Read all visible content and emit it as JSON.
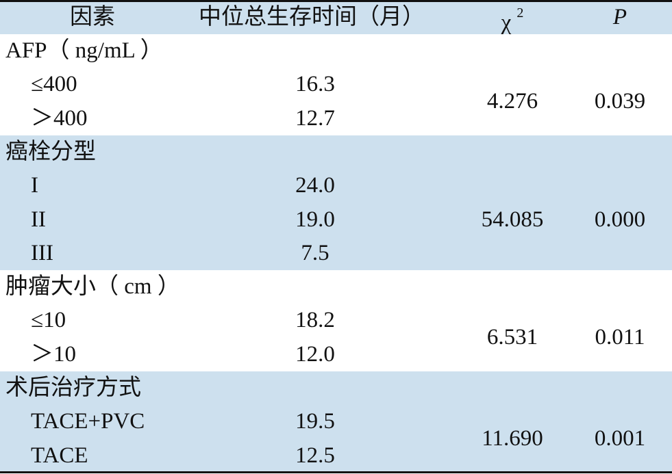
{
  "table": {
    "header": {
      "factor": "因素",
      "median": "中位总生存时间（月）",
      "chi": "χ",
      "chi_sup": "2",
      "p": "P"
    },
    "groups": [
      {
        "title": "AFP（ ng/mL ）",
        "items": [
          {
            "label": "≤400",
            "median": "16.3"
          },
          {
            "label": "＞400",
            "median": "12.7"
          }
        ],
        "chi": "4.276",
        "p": "0.039"
      },
      {
        "title": "癌栓分型",
        "items": [
          {
            "label": "I",
            "median": "24.0"
          },
          {
            "label": "II",
            "median": "19.0"
          },
          {
            "label": "III",
            "median": "7.5"
          }
        ],
        "chi": "54.085",
        "p": "0.000"
      },
      {
        "title": "肿瘤大小（ cm ）",
        "items": [
          {
            "label": "≤10",
            "median": "18.2"
          },
          {
            "label": "＞10",
            "median": "12.0"
          }
        ],
        "chi": "6.531",
        "p": "0.011"
      },
      {
        "title": "术后治疗方式",
        "items": [
          {
            "label": "TACE+PVC",
            "median": "19.5"
          },
          {
            "label": "TACE",
            "median": "12.5"
          }
        ],
        "chi": "11.690",
        "p": "0.001"
      }
    ]
  }
}
